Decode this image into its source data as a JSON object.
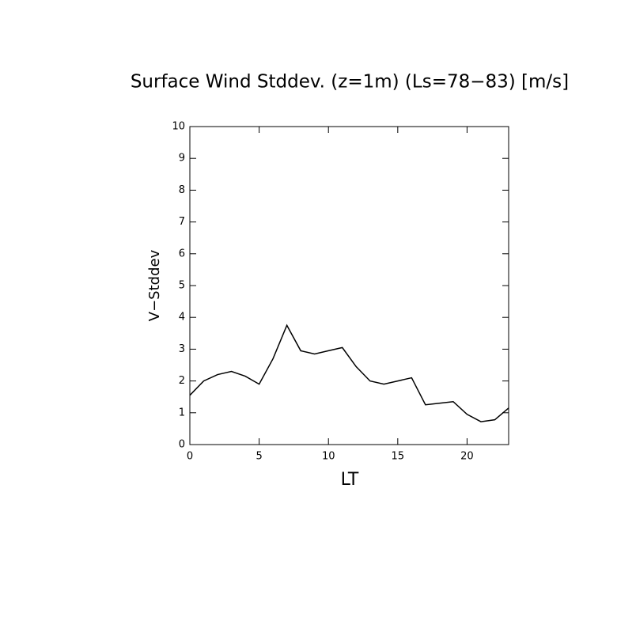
{
  "chart_data": {
    "type": "line",
    "title": "Surface Wind Stddev. (z=1m) (Ls=78−83) [m/s]",
    "x_label": "LT",
    "y_label": "V−Stddev",
    "x": [
      0,
      1,
      2,
      3,
      4,
      5,
      6,
      7,
      8,
      9,
      10,
      11,
      12,
      13,
      14,
      15,
      16,
      17,
      18,
      19,
      20,
      21,
      22,
      23
    ],
    "series": [
      {
        "color": "#000000",
        "values": [
          1.55,
          2.0,
          2.2,
          2.3,
          2.15,
          1.9,
          2.7,
          3.75,
          2.95,
          2.85,
          2.95,
          3.05,
          2.45,
          2.0,
          1.9,
          2.0,
          2.1,
          1.25,
          1.3,
          1.35,
          0.95,
          0.72,
          0.78,
          1.15
        ]
      }
    ],
    "xlim": [
      0,
      23
    ],
    "xticks": [
      0,
      5,
      10,
      15,
      20
    ],
    "ylim": [
      0,
      10
    ],
    "yticks": [
      0,
      1,
      2,
      3,
      4,
      5,
      6,
      7,
      8,
      9,
      10
    ],
    "grid": false
  }
}
